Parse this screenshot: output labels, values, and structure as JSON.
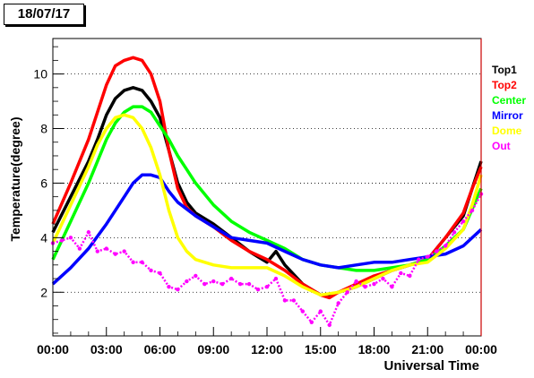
{
  "date_label": "18/07/17",
  "chart_data": {
    "type": "line",
    "title": "",
    "xlabel": "Universal Time",
    "ylabel": "Temperature(degree)",
    "xlim": [
      0,
      24
    ],
    "ylim": [
      0.4,
      11.3
    ],
    "x_ticks": [
      "00:00",
      "03:00",
      "06:00",
      "09:00",
      "12:00",
      "15:00",
      "18:00",
      "21:00",
      "00:00"
    ],
    "y_ticks": [
      "2",
      "4",
      "6",
      "8",
      "10"
    ],
    "y_tick_values": [
      2,
      4,
      6,
      8,
      10
    ],
    "grid": "horizontal-dotted",
    "legend_position": "right",
    "series": [
      {
        "name": "Top1",
        "color": "#000000",
        "points": [
          [
            0,
            4.2
          ],
          [
            1,
            5.5
          ],
          [
            2,
            6.8
          ],
          [
            2.5,
            7.6
          ],
          [
            3,
            8.5
          ],
          [
            3.5,
            9.1
          ],
          [
            4,
            9.4
          ],
          [
            4.5,
            9.5
          ],
          [
            5,
            9.4
          ],
          [
            5.5,
            9.0
          ],
          [
            6,
            8.4
          ],
          [
            6.5,
            7.2
          ],
          [
            7,
            6.0
          ],
          [
            7.5,
            5.3
          ],
          [
            8,
            4.9
          ],
          [
            9,
            4.5
          ],
          [
            10,
            4.0
          ],
          [
            11,
            3.5
          ],
          [
            11.5,
            3.3
          ],
          [
            12,
            3.1
          ],
          [
            12.5,
            3.5
          ],
          [
            13,
            3.0
          ],
          [
            14,
            2.3
          ],
          [
            15,
            1.9
          ],
          [
            15.5,
            1.9
          ],
          [
            16,
            2.0
          ],
          [
            17,
            2.2
          ],
          [
            18,
            2.5
          ],
          [
            19,
            2.8
          ],
          [
            20,
            3.0
          ],
          [
            21,
            3.2
          ],
          [
            22,
            4.0
          ],
          [
            23,
            4.8
          ],
          [
            23.5,
            5.8
          ],
          [
            24,
            6.8
          ]
        ]
      },
      {
        "name": "Top2",
        "color": "#ff0000",
        "points": [
          [
            0,
            4.5
          ],
          [
            1,
            6.0
          ],
          [
            2,
            7.6
          ],
          [
            2.5,
            8.6
          ],
          [
            3,
            9.6
          ],
          [
            3.5,
            10.3
          ],
          [
            4,
            10.5
          ],
          [
            4.5,
            10.6
          ],
          [
            5,
            10.5
          ],
          [
            5.5,
            10.0
          ],
          [
            6,
            9.0
          ],
          [
            6.5,
            7.2
          ],
          [
            7,
            5.8
          ],
          [
            7.5,
            5.1
          ],
          [
            8,
            4.8
          ],
          [
            9,
            4.4
          ],
          [
            10,
            3.9
          ],
          [
            11,
            3.5
          ],
          [
            12,
            3.2
          ],
          [
            13,
            2.8
          ],
          [
            14,
            2.3
          ],
          [
            15,
            1.9
          ],
          [
            15.5,
            1.8
          ],
          [
            16,
            2.0
          ],
          [
            17,
            2.3
          ],
          [
            18,
            2.6
          ],
          [
            19,
            2.8
          ],
          [
            20,
            3.0
          ],
          [
            21,
            3.2
          ],
          [
            22,
            4.0
          ],
          [
            23,
            4.9
          ],
          [
            23.5,
            5.8
          ],
          [
            24,
            6.6
          ]
        ]
      },
      {
        "name": "Center",
        "color": "#00ff00",
        "points": [
          [
            0,
            3.2
          ],
          [
            1,
            4.6
          ],
          [
            2,
            6.0
          ],
          [
            2.5,
            6.8
          ],
          [
            3,
            7.6
          ],
          [
            3.5,
            8.2
          ],
          [
            4,
            8.6
          ],
          [
            4.5,
            8.8
          ],
          [
            5,
            8.8
          ],
          [
            5.5,
            8.6
          ],
          [
            6,
            8.1
          ],
          [
            6.5,
            7.6
          ],
          [
            7,
            7.0
          ],
          [
            7.5,
            6.5
          ],
          [
            8,
            6.0
          ],
          [
            9,
            5.2
          ],
          [
            10,
            4.6
          ],
          [
            11,
            4.2
          ],
          [
            12,
            3.9
          ],
          [
            13,
            3.6
          ],
          [
            14,
            3.2
          ],
          [
            15,
            3.0
          ],
          [
            16,
            2.9
          ],
          [
            17,
            2.8
          ],
          [
            18,
            2.8
          ],
          [
            19,
            2.9
          ],
          [
            20,
            3.0
          ],
          [
            21,
            3.2
          ],
          [
            22,
            3.7
          ],
          [
            23,
            4.3
          ],
          [
            24,
            5.8
          ]
        ]
      },
      {
        "name": "Mirror",
        "color": "#0000ff",
        "points": [
          [
            0,
            2.3
          ],
          [
            1,
            2.9
          ],
          [
            2,
            3.6
          ],
          [
            3,
            4.5
          ],
          [
            4,
            5.5
          ],
          [
            4.5,
            6.0
          ],
          [
            5,
            6.3
          ],
          [
            5.5,
            6.3
          ],
          [
            6,
            6.2
          ],
          [
            6.5,
            5.7
          ],
          [
            7,
            5.3
          ],
          [
            8,
            4.8
          ],
          [
            9,
            4.4
          ],
          [
            10,
            4.0
          ],
          [
            11,
            3.9
          ],
          [
            12,
            3.8
          ],
          [
            13,
            3.5
          ],
          [
            14,
            3.2
          ],
          [
            15,
            3.0
          ],
          [
            16,
            2.9
          ],
          [
            17,
            3.0
          ],
          [
            18,
            3.1
          ],
          [
            19,
            3.1
          ],
          [
            20,
            3.2
          ],
          [
            21,
            3.3
          ],
          [
            22,
            3.4
          ],
          [
            23,
            3.7
          ],
          [
            24,
            4.3
          ]
        ]
      },
      {
        "name": "Dome",
        "color": "#ffff00",
        "points": [
          [
            0,
            3.8
          ],
          [
            1,
            5.2
          ],
          [
            2,
            6.6
          ],
          [
            2.5,
            7.4
          ],
          [
            3,
            8.0
          ],
          [
            3.5,
            8.4
          ],
          [
            4,
            8.5
          ],
          [
            4.5,
            8.4
          ],
          [
            5,
            8.0
          ],
          [
            5.5,
            7.3
          ],
          [
            6,
            6.3
          ],
          [
            6.5,
            5.0
          ],
          [
            7,
            4.0
          ],
          [
            7.5,
            3.5
          ],
          [
            8,
            3.2
          ],
          [
            9,
            3.0
          ],
          [
            10,
            2.9
          ],
          [
            11,
            2.9
          ],
          [
            12,
            2.9
          ],
          [
            13,
            2.6
          ],
          [
            14,
            2.2
          ],
          [
            15,
            1.9
          ],
          [
            16,
            2.0
          ],
          [
            17,
            2.2
          ],
          [
            18,
            2.5
          ],
          [
            19,
            2.8
          ],
          [
            20,
            3.0
          ],
          [
            21,
            3.1
          ],
          [
            22,
            3.6
          ],
          [
            23,
            4.3
          ],
          [
            23.5,
            5.2
          ],
          [
            24,
            6.3
          ]
        ]
      },
      {
        "name": "Out",
        "color": "#ff00ff",
        "points": [
          [
            0,
            3.8
          ],
          [
            0.5,
            3.9
          ],
          [
            1,
            4.0
          ],
          [
            1.5,
            3.6
          ],
          [
            2,
            4.2
          ],
          [
            2.5,
            3.5
          ],
          [
            3,
            3.6
          ],
          [
            3.5,
            3.4
          ],
          [
            4,
            3.5
          ],
          [
            4.5,
            3.1
          ],
          [
            5,
            3.1
          ],
          [
            5.5,
            2.8
          ],
          [
            6,
            2.7
          ],
          [
            6.5,
            2.2
          ],
          [
            7,
            2.1
          ],
          [
            7.5,
            2.4
          ],
          [
            8,
            2.6
          ],
          [
            8.5,
            2.3
          ],
          [
            9,
            2.4
          ],
          [
            9.5,
            2.3
          ],
          [
            10,
            2.5
          ],
          [
            10.5,
            2.3
          ],
          [
            11,
            2.3
          ],
          [
            11.5,
            2.1
          ],
          [
            12,
            2.2
          ],
          [
            12.5,
            2.5
          ],
          [
            13,
            1.7
          ],
          [
            13.5,
            1.7
          ],
          [
            14,
            1.3
          ],
          [
            14.5,
            0.9
          ],
          [
            15,
            1.3
          ],
          [
            15.5,
            0.8
          ],
          [
            16,
            1.6
          ],
          [
            16.5,
            2.0
          ],
          [
            17,
            2.4
          ],
          [
            17.5,
            2.2
          ],
          [
            18,
            2.3
          ],
          [
            18.5,
            2.5
          ],
          [
            19,
            2.2
          ],
          [
            19.5,
            2.7
          ],
          [
            20,
            2.6
          ],
          [
            20.5,
            3.2
          ],
          [
            21,
            3.3
          ],
          [
            21.5,
            3.5
          ],
          [
            22,
            3.7
          ],
          [
            22.5,
            4.2
          ],
          [
            23,
            4.6
          ],
          [
            23.5,
            5.0
          ],
          [
            24,
            5.6
          ]
        ]
      }
    ]
  }
}
